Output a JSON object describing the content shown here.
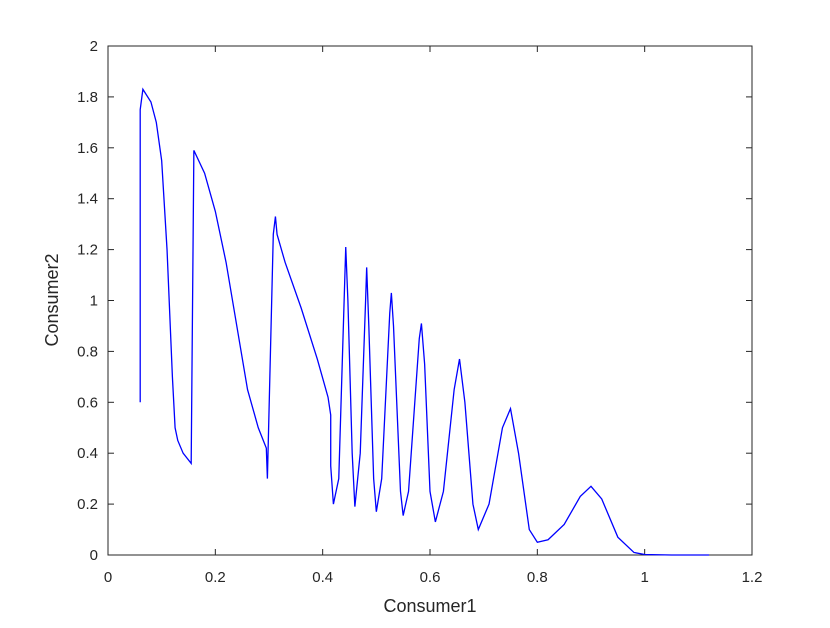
{
  "chart_data": {
    "type": "line",
    "x_label": "Consumer1",
    "y_label": "Consumer2",
    "xlim": [
      0,
      1.2
    ],
    "ylim": [
      0,
      2
    ],
    "xticks": [
      0,
      0.2,
      0.4,
      0.6,
      0.8,
      1,
      1.2
    ],
    "yticks": [
      0,
      0.2,
      0.4,
      0.6,
      0.8,
      1,
      1.2,
      1.4,
      1.6,
      1.8,
      2
    ],
    "x": [
      0.06,
      0.06,
      0.065,
      0.08,
      0.09,
      0.1,
      0.11,
      0.12,
      0.125,
      0.13,
      0.14,
      0.155,
      0.16,
      0.18,
      0.2,
      0.22,
      0.24,
      0.26,
      0.28,
      0.295,
      0.297,
      0.308,
      0.312,
      0.315,
      0.33,
      0.36,
      0.39,
      0.41,
      0.415,
      0.415,
      0.42,
      0.43,
      0.44,
      0.443,
      0.447,
      0.455,
      0.46,
      0.47,
      0.48,
      0.482,
      0.486,
      0.495,
      0.5,
      0.51,
      0.525,
      0.528,
      0.532,
      0.545,
      0.55,
      0.56,
      0.58,
      0.584,
      0.59,
      0.6,
      0.61,
      0.625,
      0.645,
      0.655,
      0.665,
      0.68,
      0.69,
      0.71,
      0.735,
      0.75,
      0.765,
      0.785,
      0.8,
      0.82,
      0.85,
      0.88,
      0.9,
      0.92,
      0.95,
      0.98,
      1.0,
      1.05,
      1.12
    ],
    "series": [
      {
        "color": "#0000ff",
        "values": [
          0.6,
          1.75,
          1.83,
          1.78,
          1.7,
          1.55,
          1.2,
          0.7,
          0.5,
          0.45,
          0.4,
          0.36,
          1.59,
          1.5,
          1.35,
          1.15,
          0.9,
          0.65,
          0.5,
          0.42,
          0.3,
          1.26,
          1.33,
          1.26,
          1.15,
          0.97,
          0.77,
          0.62,
          0.55,
          0.35,
          0.2,
          0.3,
          1.0,
          1.21,
          1.0,
          0.4,
          0.19,
          0.4,
          1.0,
          1.13,
          0.9,
          0.3,
          0.17,
          0.3,
          0.95,
          1.03,
          0.9,
          0.25,
          0.155,
          0.25,
          0.85,
          0.91,
          0.75,
          0.25,
          0.13,
          0.25,
          0.65,
          0.77,
          0.6,
          0.2,
          0.1,
          0.2,
          0.5,
          0.575,
          0.4,
          0.1,
          0.05,
          0.06,
          0.12,
          0.23,
          0.27,
          0.22,
          0.07,
          0.01,
          0.002,
          0,
          0
        ]
      }
    ]
  }
}
